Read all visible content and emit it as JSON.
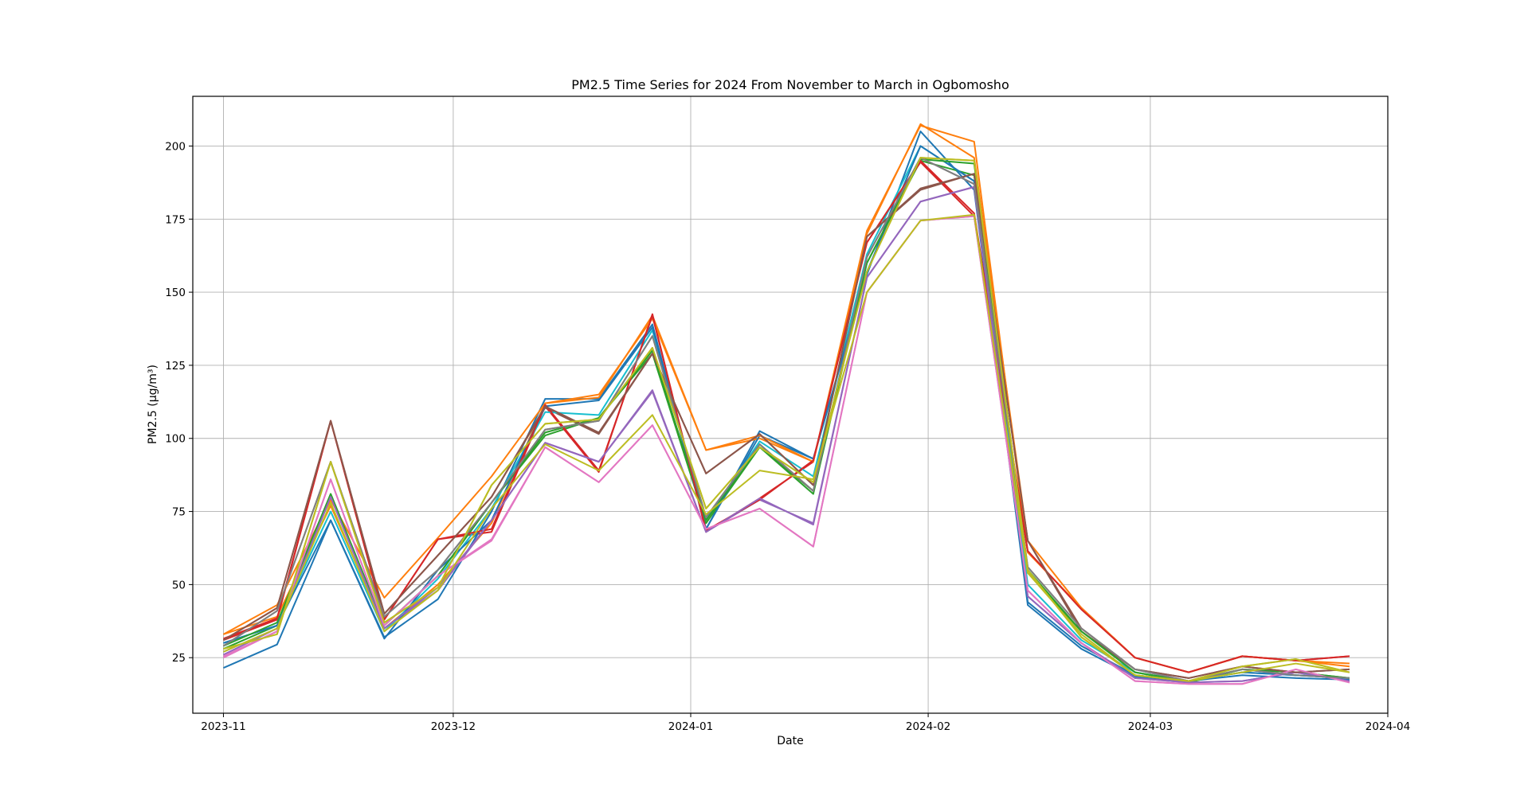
{
  "chart_data": {
    "type": "line",
    "title": "PM2.5 Time Series for 2024 From November to March in Ogbomosho",
    "xlabel": "Date",
    "ylabel": "PM2.5 (µg/m³)",
    "xlim": [
      "2023-10-28",
      "2024-04-01"
    ],
    "ylim": [
      6,
      217
    ],
    "grid": true,
    "x_ticks": [
      "2023-11",
      "2023-12",
      "2024-01",
      "2024-02",
      "2024-03",
      "2024-04"
    ],
    "x_tick_dates": [
      "2023-11-01",
      "2023-12-01",
      "2024-01-01",
      "2024-02-01",
      "2024-03-01",
      "2024-04-01"
    ],
    "y_ticks": [
      25,
      50,
      75,
      100,
      125,
      150,
      175,
      200
    ],
    "x": [
      "2023-11-01",
      "2023-11-08",
      "2023-11-15",
      "2023-11-22",
      "2023-11-29",
      "2023-12-06",
      "2023-12-13",
      "2023-12-20",
      "2023-12-27",
      "2024-01-03",
      "2024-01-10",
      "2024-01-17",
      "2024-01-24",
      "2024-01-31",
      "2024-02-07",
      "2024-02-14",
      "2024-02-21",
      "2024-02-28",
      "2024-03-06",
      "2024-03-13",
      "2024-03-20",
      "2024-03-27"
    ],
    "series": [
      {
        "color": "#1f77b4",
        "values": [
          21.5,
          29.5,
          72,
          32,
          45,
          75,
          113.5,
          113.5,
          139,
          69,
          102.5,
          93,
          156,
          205,
          185,
          43,
          28,
          18.5,
          17,
          19,
          18,
          17.5
        ]
      },
      {
        "color": "#ff7f0e",
        "values": [
          33,
          39,
          77,
          35,
          50,
          71,
          112,
          114,
          142,
          96,
          100,
          92,
          170,
          207.5,
          196,
          65,
          42,
          25,
          20,
          25.5,
          24,
          23
        ]
      },
      {
        "color": "#2ca02c",
        "values": [
          28,
          36,
          81,
          36,
          53,
          78,
          101,
          107,
          129,
          71,
          97,
          81,
          160,
          195,
          190,
          54,
          34,
          20,
          16.5,
          21,
          20,
          18
        ]
      },
      {
        "color": "#d62728",
        "values": [
          31,
          38,
          106,
          38,
          65.5,
          68,
          111,
          88.5,
          142.5,
          68,
          79.5,
          92,
          167,
          194.5,
          176,
          61,
          42,
          25,
          20,
          25.5,
          24,
          25.5
        ]
      },
      {
        "color": "#9467bd",
        "values": [
          26,
          35,
          80,
          35,
          48,
          72,
          98.5,
          92,
          116,
          68,
          79,
          71,
          155,
          181,
          186,
          46,
          30,
          18,
          16.5,
          17,
          20,
          17
        ]
      },
      {
        "color": "#8c564b",
        "values": [
          31,
          42,
          106,
          40,
          60,
          80,
          110.5,
          101.5,
          129,
          88,
          101.5,
          84,
          169,
          185,
          190.5,
          65,
          34,
          21,
          18,
          22,
          20,
          21
        ]
      },
      {
        "color": "#e377c2",
        "values": [
          25,
          34,
          86,
          36,
          53,
          65,
          97,
          85,
          104.5,
          69,
          76,
          63,
          150,
          174.5,
          176,
          48,
          30,
          17,
          16,
          16,
          21,
          16.5
        ]
      },
      {
        "color": "#7f7f7f",
        "values": [
          29,
          41,
          92,
          39,
          55,
          78,
          103,
          106,
          135,
          73,
          98,
          82,
          162,
          196,
          187,
          56,
          35,
          21,
          17,
          21,
          19,
          18
        ]
      },
      {
        "color": "#bcbd22",
        "values": [
          28,
          33,
          92,
          37,
          49,
          84,
          105,
          106.5,
          131,
          76,
          97,
          85,
          157,
          196,
          195,
          55,
          32,
          19,
          17,
          22,
          24.5,
          20
        ]
      },
      {
        "color": "#17becf",
        "values": [
          30,
          36,
          75,
          34,
          52,
          76,
          109,
          108,
          137,
          72,
          99,
          87,
          163,
          200,
          188,
          50,
          31,
          20,
          17,
          20,
          19,
          18
        ]
      },
      {
        "color": "#1f77b4",
        "values": [
          30,
          36,
          72,
          31.5,
          55,
          72,
          111,
          113,
          138,
          69,
          101,
          93,
          157,
          200,
          188,
          44,
          29,
          19,
          17,
          20,
          19,
          18
        ]
      },
      {
        "color": "#ff7f0e",
        "values": [
          33,
          43,
          79,
          45.5,
          66,
          87,
          112,
          115,
          141,
          96,
          101,
          92,
          171,
          207,
          201.5,
          61,
          42,
          25,
          20,
          25.5,
          24,
          22
        ]
      },
      {
        "color": "#2ca02c",
        "values": [
          29,
          37,
          81,
          36,
          53,
          78,
          102,
          107,
          130,
          72,
          97,
          82,
          160,
          195.5,
          194,
          55,
          34,
          20,
          17,
          21,
          20,
          18
        ]
      },
      {
        "color": "#d62728",
        "values": [
          31.5,
          38.5,
          106,
          38,
          65.5,
          69,
          111.5,
          89,
          142,
          68.5,
          79,
          92.5,
          167,
          195,
          177,
          61.5,
          41.5,
          25,
          20,
          25.5,
          24,
          25.5
        ]
      },
      {
        "color": "#9467bd",
        "values": [
          27,
          35,
          80,
          35,
          49,
          72,
          98.5,
          92,
          116.5,
          68,
          79.5,
          70.5,
          155,
          181,
          186,
          46,
          30,
          18,
          16.5,
          17,
          20,
          17
        ]
      },
      {
        "color": "#8c564b",
        "values": [
          31,
          42,
          106,
          40,
          60,
          80,
          111,
          102,
          129,
          88,
          101.5,
          84,
          169,
          185.5,
          190.5,
          65,
          35,
          21,
          18,
          22,
          20,
          21
        ]
      },
      {
        "color": "#e377c2",
        "values": [
          25.5,
          34,
          86,
          36,
          53,
          65.5,
          97,
          85,
          104.5,
          69,
          76,
          63,
          150,
          174.5,
          176,
          48,
          30,
          17,
          16,
          16,
          21,
          16.5
        ]
      },
      {
        "color": "#7f7f7f",
        "values": [
          29,
          41,
          92,
          39,
          55,
          78,
          103,
          106,
          135,
          73,
          98,
          82,
          162,
          196,
          187,
          56,
          35,
          21,
          17,
          21,
          19,
          18
        ]
      },
      {
        "color": "#bcbd22",
        "values": [
          28,
          33,
          92,
          37,
          49,
          84,
          105,
          106.5,
          131,
          76,
          97,
          85,
          157,
          196,
          195,
          55,
          32,
          19,
          17,
          22,
          24.5,
          20
        ]
      },
      {
        "color": "#bcbd22",
        "values": [
          27,
          35,
          78,
          34,
          48,
          76,
          98,
          89,
          108,
          74,
          89,
          86,
          150,
          174.5,
          176.5,
          54,
          33,
          19,
          17,
          20,
          23,
          20
        ]
      }
    ]
  }
}
